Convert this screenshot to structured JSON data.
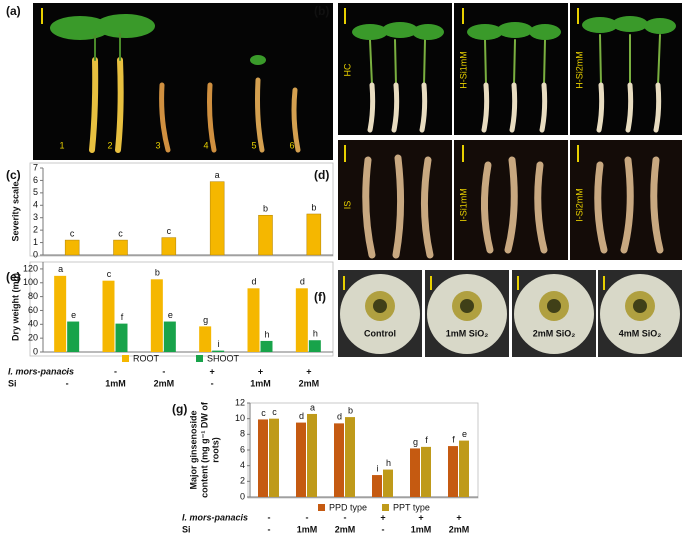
{
  "panels": {
    "a": {
      "letter": "(a)",
      "labels": [
        "1",
        "2",
        "3",
        "4",
        "5",
        "6"
      ]
    },
    "b": {
      "letter": "(b)",
      "labels": [
        "HC",
        "H-Si1mM",
        "H-Si2mM"
      ]
    },
    "c": {
      "letter": "(c)"
    },
    "d": {
      "letter": "(d)",
      "labels": [
        "IS",
        "I-Si1mM",
        "I-Si2mM"
      ]
    },
    "e": {
      "letter": "(e)"
    },
    "f": {
      "letter": "(f)",
      "labels": [
        "Control",
        "1mM SiO₂",
        "2mM SiO₂",
        "4mM SiO₂"
      ]
    },
    "g": {
      "letter": "(g)"
    }
  },
  "chart_data": [
    {
      "type": "bar",
      "ylabel": [
        "Severity scale"
      ],
      "ylim": [
        0,
        7
      ],
      "yticks": [
        0,
        1,
        2,
        3,
        4,
        5,
        6,
        7
      ],
      "values": [
        1.2,
        1.2,
        1.4,
        5.9,
        3.2,
        3.3
      ],
      "letters": [
        "c",
        "c",
        "c",
        "a",
        "b",
        "b"
      ],
      "color": "#f5b700"
    },
    {
      "type": "grouped_bar",
      "ylabel": [
        "Dry weight (mg)"
      ],
      "ylim": [
        0,
        130
      ],
      "yticks": [
        0,
        20,
        40,
        60,
        80,
        100,
        120
      ],
      "series": [
        {
          "name": "ROOT",
          "color": "#f5b700",
          "values": [
            110,
            103,
            105,
            37,
            92,
            92
          ],
          "letters": [
            "a",
            "c",
            "b",
            "g",
            "d",
            "d"
          ]
        },
        {
          "name": "SHOOT",
          "color": "#18a34a",
          "values": [
            44,
            41,
            44,
            2,
            16,
            17
          ],
          "letters": [
            "e",
            "f",
            "e",
            "i",
            "h",
            "h"
          ]
        }
      ],
      "treatments": [
        {
          "name": "I. mors-panacis",
          "values": [
            "-",
            "-",
            "-",
            "+",
            "+",
            "+"
          ]
        },
        {
          "name": "Si",
          "values": [
            "-",
            "1mM",
            "2mM",
            "-",
            "1mM",
            "2mM"
          ]
        }
      ]
    },
    {
      "type": "grouped_bar",
      "ylabel": [
        "Major ginsenoside",
        "content (mg g⁻¹ DW of",
        "roots)"
      ],
      "ylim": [
        0,
        12
      ],
      "yticks": [
        0,
        2,
        4,
        6,
        8,
        10,
        12
      ],
      "series": [
        {
          "name": "PPD type",
          "color": "#c55a11",
          "values": [
            9.9,
            9.5,
            9.4,
            2.8,
            6.2,
            6.5
          ],
          "letters": [
            "c",
            "d",
            "d",
            "i",
            "g",
            "f"
          ]
        },
        {
          "name": "PPT type",
          "color": "#bf9a1a",
          "values": [
            10.0,
            10.6,
            10.2,
            3.5,
            6.4,
            7.2
          ],
          "letters": [
            "c",
            "a",
            "b",
            "h",
            "f",
            "e"
          ]
        }
      ],
      "treatments": [
        {
          "name": "I. mors-panacis",
          "values": [
            "-",
            "-",
            "-",
            "+",
            "+",
            "+"
          ]
        },
        {
          "name": "Si",
          "values": [
            "-",
            "1mM",
            "2mM",
            "-",
            "1mM",
            "2mM"
          ]
        }
      ]
    }
  ]
}
